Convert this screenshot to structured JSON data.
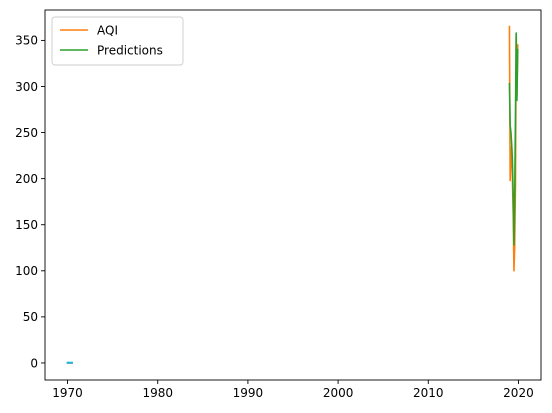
{
  "chart_data": {
    "type": "line",
    "title": "",
    "xlabel": "",
    "ylabel": "",
    "xlim": [
      1967.5,
      2022.5
    ],
    "ylim": [
      -18.5,
      383
    ],
    "x_ticks": [
      1970,
      1980,
      1990,
      2000,
      2010,
      2020
    ],
    "y_ticks": [
      0,
      50,
      100,
      150,
      200,
      250,
      300,
      350
    ],
    "grid": false,
    "legend_position": "top-left",
    "legend": [
      "AQI",
      "Predictions"
    ],
    "series": [
      {
        "name": "",
        "color": "#1f77b4",
        "x": [
          1970.0,
          1970.5
        ],
        "y": [
          0,
          0
        ]
      },
      {
        "name": "",
        "color": "#17becf",
        "x": [
          1970.0,
          1970.5
        ],
        "y": [
          0.5,
          0.5
        ]
      },
      {
        "name": "AQI",
        "color": "#ff7f0e",
        "x": [
          2019.0,
          2019.08,
          2019.17,
          2019.25,
          2019.33,
          2019.42,
          2019.5,
          2019.58,
          2019.67,
          2019.75,
          2019.83,
          2019.92
        ],
        "y": [
          365,
          198,
          230,
          235,
          200,
          160,
          100,
          125,
          195,
          355,
          290,
          345
        ]
      },
      {
        "name": "Predictions",
        "color": "#2ca02c",
        "x": [
          2019.0,
          2019.08,
          2019.17,
          2019.25,
          2019.33,
          2019.42,
          2019.5,
          2019.58,
          2019.67,
          2019.75,
          2019.83,
          2019.92
        ],
        "y": [
          303,
          258,
          250,
          237,
          220,
          180,
          128,
          175,
          270,
          358,
          285,
          340
        ]
      }
    ]
  }
}
